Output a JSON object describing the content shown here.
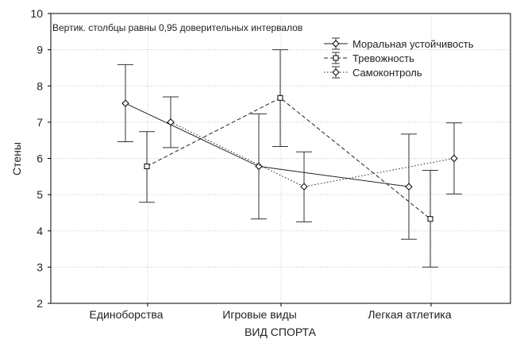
{
  "chart_data": {
    "type": "line",
    "title": "",
    "annotation": "Вертик. столбцы равны 0,95 доверительных интервалов",
    "xlabel": "ВИД СПОРТА",
    "ylabel": "Стены",
    "ylim": [
      2,
      10
    ],
    "yticks": [
      2,
      3,
      4,
      5,
      6,
      7,
      8,
      9,
      10
    ],
    "grid": true,
    "legend_position": "top-right",
    "categories": [
      "Единоборства",
      "Игровые виды",
      "Легкая атлетика"
    ],
    "series": [
      {
        "name": "Моральная устойчивость",
        "marker": "diamond",
        "line_style": "solid",
        "values": [
          7.52,
          5.78,
          5.22
        ],
        "ci_low": [
          6.46,
          4.33,
          3.77
        ],
        "ci_high": [
          8.59,
          7.23,
          6.67
        ]
      },
      {
        "name": "Тревожность",
        "marker": "square",
        "line_style": "dashed",
        "values": [
          5.78,
          7.67,
          4.33
        ],
        "ci_low": [
          4.79,
          6.33,
          3.0
        ],
        "ci_high": [
          6.74,
          9.0,
          5.67
        ]
      },
      {
        "name": "Самоконтроль",
        "marker": "diamond",
        "line_style": "dotted",
        "values": [
          7.0,
          5.22,
          6.0
        ],
        "ci_low": [
          6.3,
          4.25,
          5.02
        ],
        "ci_high": [
          7.7,
          6.18,
          6.98
        ]
      }
    ]
  }
}
